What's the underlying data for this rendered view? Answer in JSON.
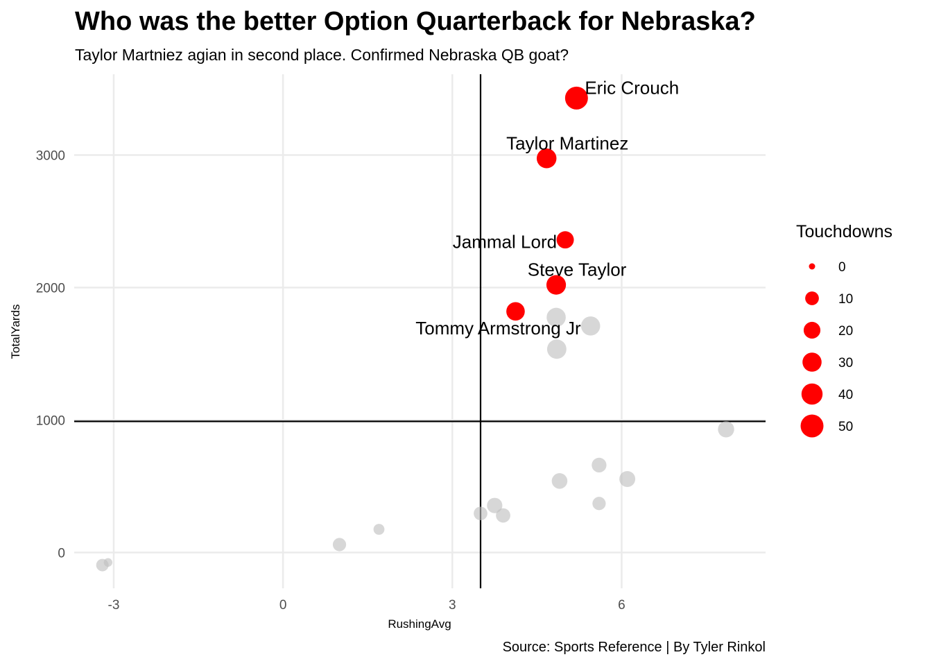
{
  "chart_data": {
    "type": "scatter",
    "title": "Who was the better Option Quarterback for Nebraska?",
    "subtitle": "Taylor Martniez agian in second place. Confirmed Nebraska QB goat?",
    "caption": "Source: Sports Reference | By Tyler Rinkol",
    "xlabel": "RushingAvg",
    "ylabel": "TotalYards",
    "xlim": [
      -3.7,
      8.55
    ],
    "ylim": [
      -270,
      3610
    ],
    "x_ticks": [
      -3,
      0,
      3,
      6
    ],
    "y_ticks": [
      0,
      1000,
      2000,
      3000
    ],
    "grid": true,
    "reference_lines": {
      "x": 3.5,
      "y": 990
    },
    "size_legend": {
      "title": "Touchdowns",
      "breaks": [
        0,
        10,
        20,
        30,
        40,
        50
      ],
      "position": "right"
    },
    "highlight_color": "#ff0000",
    "other_color": "#bfbfbf",
    "highlighted": [
      {
        "name": "Eric Crouch",
        "x": 5.2,
        "y": 3430,
        "touchdowns": 50
      },
      {
        "name": "Taylor Martinez",
        "x": 4.67,
        "y": 2975,
        "touchdowns": 33
      },
      {
        "name": "Jammal Lord",
        "x": 5.0,
        "y": 2360,
        "touchdowns": 22
      },
      {
        "name": "Steve Taylor",
        "x": 4.84,
        "y": 2020,
        "touchdowns": 32
      },
      {
        "name": "Tommy Armstrong Jr",
        "x": 4.12,
        "y": 1820,
        "touchdowns": 27
      }
    ],
    "others": [
      {
        "x": 4.84,
        "y": 1775,
        "touchdowns": 30
      },
      {
        "x": 5.45,
        "y": 1710,
        "touchdowns": 30
      },
      {
        "x": 4.85,
        "y": 1535,
        "touchdowns": 31
      },
      {
        "x": 7.85,
        "y": 930,
        "touchdowns": 18
      },
      {
        "x": 5.6,
        "y": 660,
        "touchdowns": 13
      },
      {
        "x": 6.1,
        "y": 555,
        "touchdowns": 17
      },
      {
        "x": 4.9,
        "y": 540,
        "touchdowns": 16
      },
      {
        "x": 3.75,
        "y": 355,
        "touchdowns": 15
      },
      {
        "x": 5.6,
        "y": 370,
        "touchdowns": 9
      },
      {
        "x": 3.5,
        "y": 295,
        "touchdowns": 10
      },
      {
        "x": 3.9,
        "y": 280,
        "touchdowns": 12
      },
      {
        "x": 1.7,
        "y": 175,
        "touchdowns": 4
      },
      {
        "x": 1.0,
        "y": 60,
        "touchdowns": 9
      },
      {
        "x": -3.2,
        "y": -95,
        "touchdowns": 7
      },
      {
        "x": -3.1,
        "y": -75,
        "touchdowns": 1
      }
    ]
  }
}
